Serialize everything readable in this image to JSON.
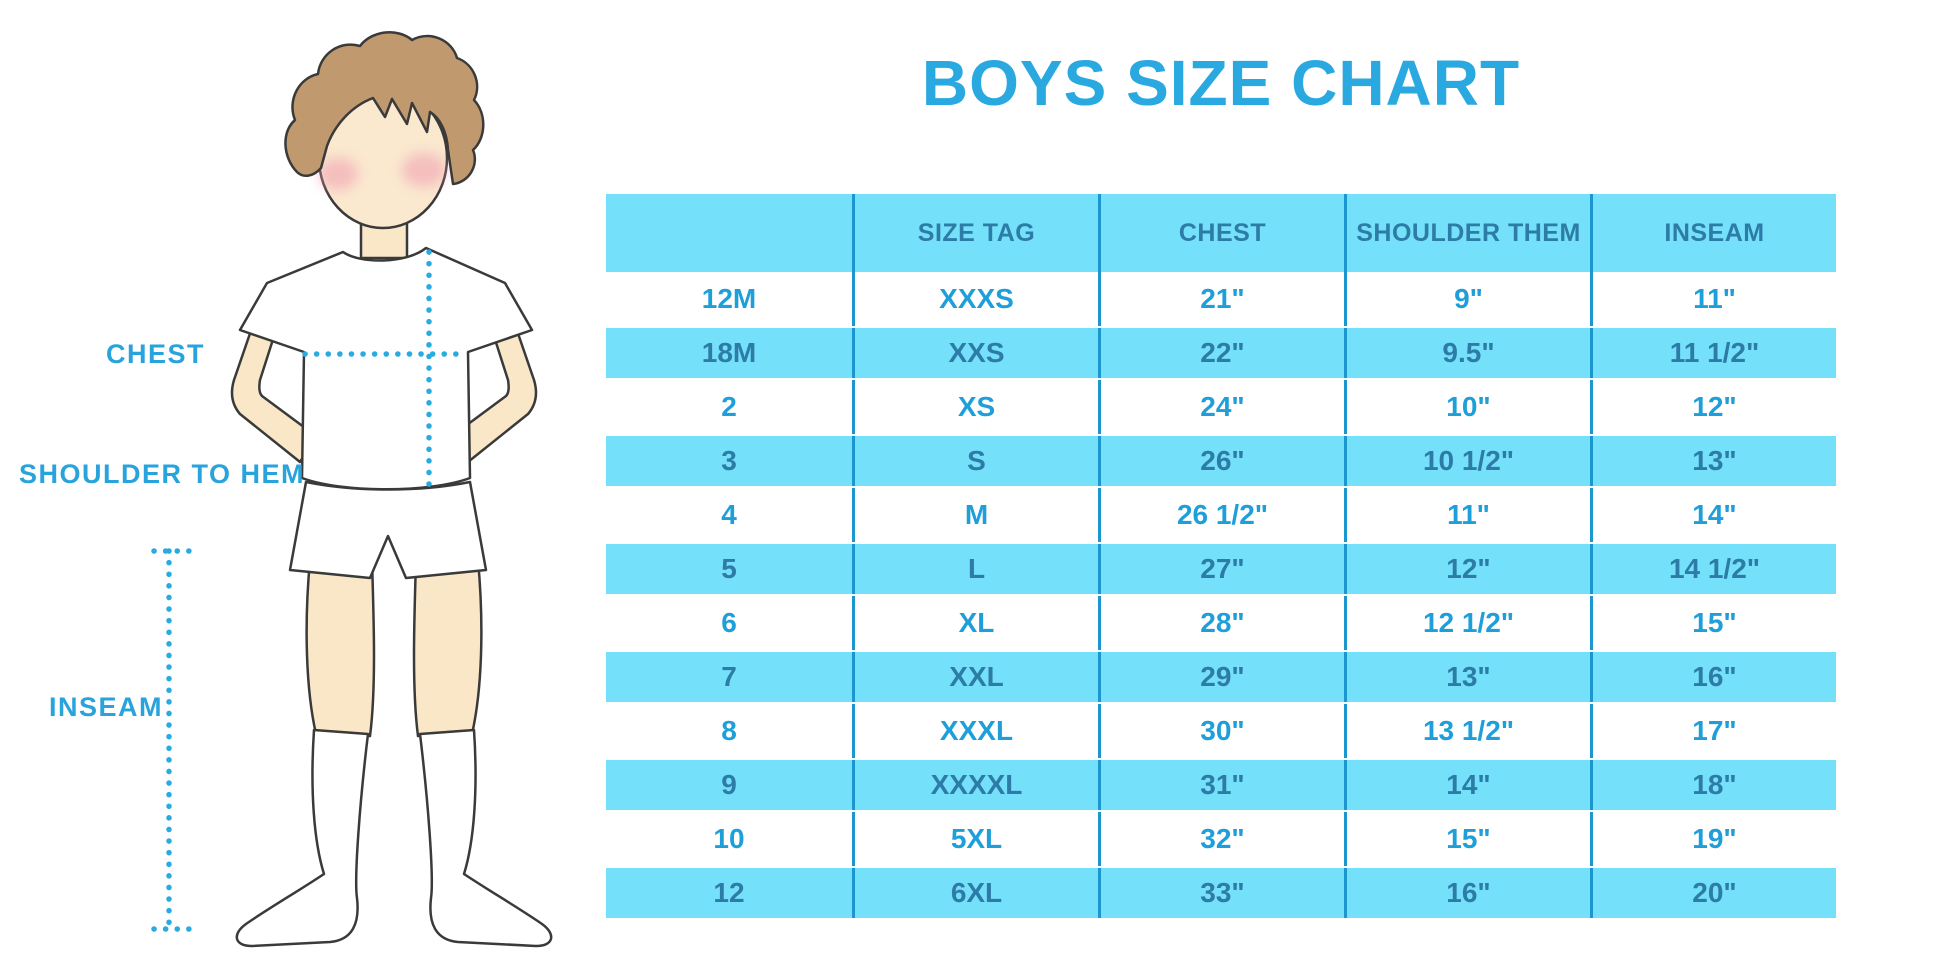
{
  "title": "BOYS SIZE CHART",
  "figure_labels": {
    "chest": "CHEST",
    "shoulder_to_hem": "SHOULDER TO HEM",
    "inseam": "INSEAM"
  },
  "colors": {
    "title_blue": "#29A9E0",
    "stripe_blue": "#74E0F9",
    "divider_blue": "#1C96CE",
    "white_row_text_blue": "#1E9FD9",
    "blue_row_text": "#2C7CA7",
    "dotted_line_blue": "#29ABE2",
    "hair_brown": "#C09A6E",
    "skin": "#FAE7C8",
    "blush_pink": "#F19CB0"
  },
  "chart_data": {
    "type": "table",
    "title": "BOYS SIZE CHART",
    "columns": [
      "",
      "SIZE TAG",
      "CHEST",
      "SHOULDER THEM",
      "INSEAM"
    ],
    "rows": [
      [
        "12M",
        "XXXS",
        "21\"",
        "9\"",
        "11\""
      ],
      [
        "18M",
        "XXS",
        "22\"",
        "9.5\"",
        "11 1/2\""
      ],
      [
        "2",
        "XS",
        "24\"",
        "10\"",
        "12\""
      ],
      [
        "3",
        "S",
        "26\"",
        "10 1/2\"",
        "13\""
      ],
      [
        "4",
        "M",
        "26 1/2\"",
        "11\"",
        "14\""
      ],
      [
        "5",
        "L",
        "27\"",
        "12\"",
        "14 1/2\""
      ],
      [
        "6",
        "XL",
        "28\"",
        "12 1/2\"",
        "15\""
      ],
      [
        "7",
        "XXL",
        "29\"",
        "13\"",
        "16\""
      ],
      [
        "8",
        "XXXL",
        "30\"",
        "13 1/2\"",
        "17\""
      ],
      [
        "9",
        "XXXXL",
        "31\"",
        "14\"",
        "18\""
      ],
      [
        "10",
        "5XL",
        "32\"",
        "15\"",
        "19\""
      ],
      [
        "12",
        "6XL",
        "33\"",
        "16\"",
        "20\""
      ]
    ],
    "striped_row_indices": [
      1,
      3,
      5,
      7,
      9,
      11
    ],
    "legend_position": "none",
    "grid": "vertical-dividers"
  }
}
